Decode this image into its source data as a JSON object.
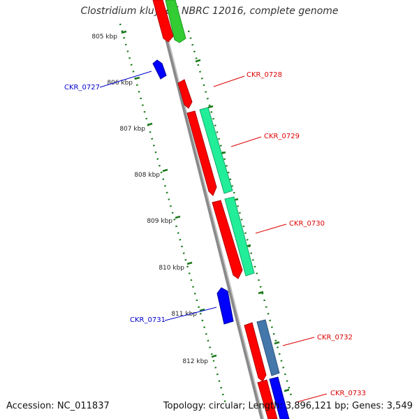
{
  "title": "Clostridium kluyveri NBRC 12016, complete genome",
  "footer": {
    "accession": "Accession: NC_011837",
    "summary": "Topology: circular; Length: 3,896,121 bp; Genes: 3,549"
  },
  "colors": {
    "backbone": "#8a8a8a",
    "ticks": "#1a7a1a",
    "forward_cds": "#ff0000",
    "reverse_cds": "#0000ff",
    "green_feature": "#33cc33",
    "cyan_feature": "#22ee99",
    "steel_feature": "#4477aa",
    "forward_label": "#dd0000",
    "reverse_label": "#0000cc"
  },
  "scale_labels": [
    "805 kbp",
    "806 kbp",
    "807 kbp",
    "808 kbp",
    "809 kbp",
    "810 kbp",
    "811 kbp",
    "812 kbp"
  ],
  "gene_labels": [
    "CKR_0727",
    "CKR_0728",
    "CKR_0729",
    "CKR_0730",
    "CKR_0731",
    "CKR_0732",
    "CKR_0733"
  ]
}
